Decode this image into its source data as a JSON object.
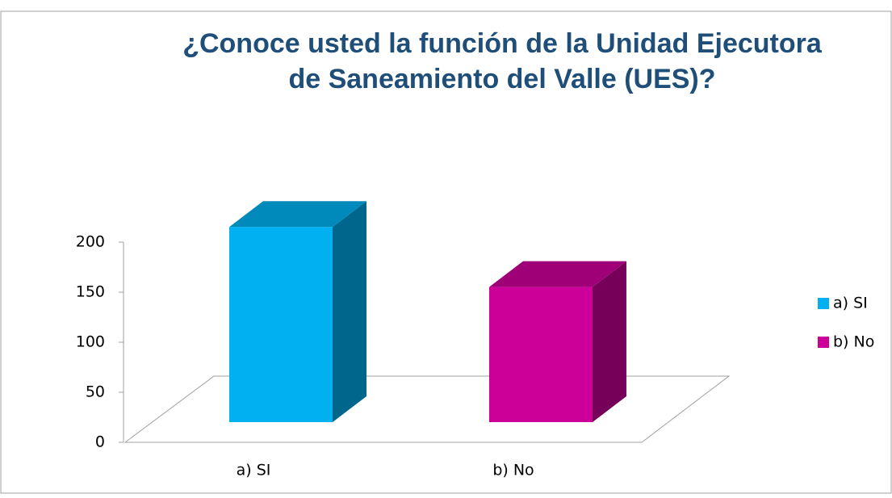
{
  "chart_data": {
    "type": "bar3d",
    "title": [
      "¿Conoce usted la función de la Unidad Ejecutora",
      "de Saneamiento del Valle (UES)?"
    ],
    "categories": [
      "a) SI",
      "b) No"
    ],
    "values": [
      195,
      135
    ],
    "colors": [
      "#00b0f0",
      "#cc0099"
    ],
    "ylim": [
      0,
      200
    ],
    "yticks": [
      0,
      50,
      100,
      150,
      200
    ],
    "legend": "right"
  }
}
